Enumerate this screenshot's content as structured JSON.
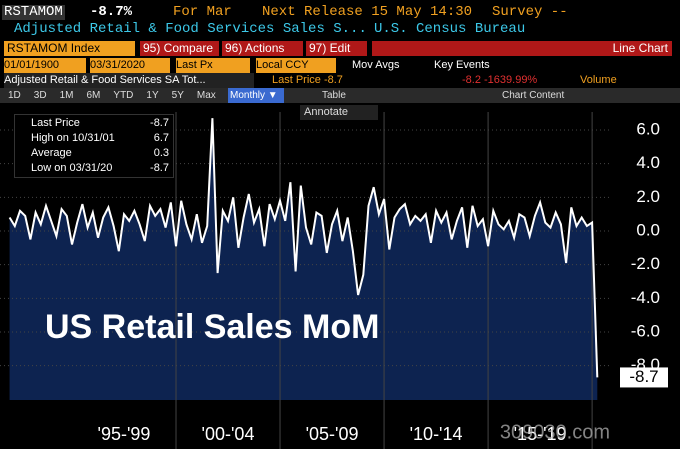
{
  "header": {
    "ticker": "RSTAMOM",
    "change": "-8.7%",
    "period": "For Mar",
    "next_release": "Next Release 15 May 14:30",
    "survey": "Survey --",
    "description": "Adjusted Retail & Food Services Sales S...",
    "source": "U.S. Census Bureau"
  },
  "toolbar": {
    "security": "RSTAMOM Index",
    "compare": "95) Compare",
    "actions": "96) Actions",
    "edit": "97) Edit",
    "view": "Line Chart"
  },
  "settings": {
    "start": "01/01/1900",
    "end": "03/31/2020",
    "field": "Last Px",
    "currency": "Local CCY",
    "mov_avgs": "Mov Avgs",
    "key_events": "Key Events"
  },
  "info_row": {
    "name": "Adjusted Retail & Food Services SA Tot...",
    "last": "Last Price -8.7",
    "change": "-8.2 -1639.99%",
    "volume": "Volume"
  },
  "ranges": [
    "1D",
    "3D",
    "1M",
    "6M",
    "YTD",
    "1Y",
    "5Y",
    "Max"
  ],
  "frequency": "Monthly ▼",
  "table": "Table",
  "chart_content": "Chart Content",
  "annotate": "Annotate",
  "legend": [
    {
      "label": "Last Price",
      "value": "-8.7"
    },
    {
      "label": "High on 10/31/01",
      "value": "6.7"
    },
    {
      "label": "Average",
      "value": "0.3"
    },
    {
      "label": "Low on 03/31/20",
      "value": "-8.7"
    }
  ],
  "watermark": "309030.com",
  "chart_data": {
    "type": "area",
    "title": "US Retail Sales MoM",
    "xlim": [
      1991.54,
      2020.86
    ],
    "ylim": [
      -10.04,
      7.07
    ],
    "xticks": [
      {
        "value": 1997.5,
        "label": "'95-'99"
      },
      {
        "value": 2002.5,
        "label": "'00-'04"
      },
      {
        "value": 2007.5,
        "label": "'05-'09"
      },
      {
        "value": 2012.5,
        "label": "'10-'14"
      },
      {
        "value": 2017.5,
        "label": "'15-'19"
      }
    ],
    "yticks": [
      {
        "value": -8,
        "label": "-8.0"
      },
      {
        "value": -6,
        "label": "-6.0"
      },
      {
        "value": -4,
        "label": "-4.0"
      },
      {
        "value": -2,
        "label": "-2.0"
      },
      {
        "value": 0,
        "label": "0.0"
      },
      {
        "value": 2,
        "label": "2.0"
      },
      {
        "value": 4,
        "label": "4.0"
      },
      {
        "value": 6,
        "label": "6.0"
      }
    ],
    "grid": true,
    "series": [
      {
        "name": "Last Price",
        "color": "#ffffff",
        "fill": "#0d2350",
        "x": [
          1992,
          1992.25,
          1992.5,
          1992.75,
          1993,
          1993.25,
          1993.5,
          1993.75,
          1994,
          1994.25,
          1994.5,
          1994.75,
          1995,
          1995.25,
          1995.5,
          1995.75,
          1996,
          1996.25,
          1996.5,
          1996.75,
          1997,
          1997.25,
          1997.5,
          1997.75,
          1998,
          1998.25,
          1998.5,
          1998.75,
          1999,
          1999.25,
          1999.5,
          1999.75,
          2000,
          2000.25,
          2000.5,
          2000.75,
          2001,
          2001.25,
          2001.5,
          2001.75,
          2002,
          2002.25,
          2002.5,
          2002.75,
          2003,
          2003.25,
          2003.5,
          2003.75,
          2004,
          2004.25,
          2004.5,
          2004.75,
          2005,
          2005.25,
          2005.5,
          2005.75,
          2006,
          2006.25,
          2006.5,
          2006.75,
          2007,
          2007.25,
          2007.5,
          2007.75,
          2008,
          2008.25,
          2008.5,
          2008.75,
          2009,
          2009.25,
          2009.5,
          2009.75,
          2010,
          2010.25,
          2010.5,
          2010.75,
          2011,
          2011.25,
          2011.5,
          2011.75,
          2012,
          2012.25,
          2012.5,
          2012.75,
          2013,
          2013.25,
          2013.5,
          2013.75,
          2014,
          2014.25,
          2014.5,
          2014.75,
          2015,
          2015.25,
          2015.5,
          2015.75,
          2016,
          2016.25,
          2016.5,
          2016.75,
          2017,
          2017.25,
          2017.5,
          2017.75,
          2018,
          2018.25,
          2018.5,
          2018.75,
          2019,
          2019.25,
          2019.5,
          2019.75,
          2020,
          2020.25
        ],
        "values": [
          0.8,
          0.3,
          1.2,
          0.9,
          -0.5,
          1.1,
          0.4,
          1.5,
          0.6,
          -0.3,
          1.3,
          0.9,
          -0.8,
          0.5,
          1.6,
          0.2,
          1.1,
          -0.4,
          0.8,
          1.4,
          0.3,
          -1.2,
          1.0,
          0.6,
          1.2,
          0.4,
          -0.6,
          1.5,
          0.9,
          1.3,
          0.2,
          1.7,
          -0.9,
          1.8,
          0.4,
          -0.5,
          1.0,
          -0.7,
          0.3,
          6.7,
          -2.5,
          1.2,
          0.6,
          2.0,
          -1.0,
          0.8,
          2.2,
          0.5,
          1.3,
          -0.9,
          1.6,
          0.7,
          1.8,
          0.6,
          2.9,
          -2.4,
          2.7,
          0.2,
          -0.8,
          1.1,
          0.9,
          -1.3,
          0.4,
          1.2,
          -0.6,
          0.8,
          -1.2,
          -3.8,
          -2.6,
          1.5,
          2.6,
          1.0,
          1.9,
          -1.1,
          0.8,
          1.3,
          1.6,
          0.4,
          0.9,
          0.6,
          1.0,
          -0.7,
          1.2,
          0.5,
          1.1,
          -0.5,
          0.6,
          1.4,
          -1.0,
          1.5,
          0.3,
          0.7,
          -0.9,
          1.2,
          0.4,
          0.1,
          0.6,
          -0.4,
          1.0,
          0.8,
          -0.3,
          0.9,
          1.7,
          0.5,
          0.2,
          1.1,
          0.4,
          -1.9,
          1.4,
          0.3,
          0.8,
          0.3,
          0.5,
          -8.7
        ]
      }
    ]
  }
}
